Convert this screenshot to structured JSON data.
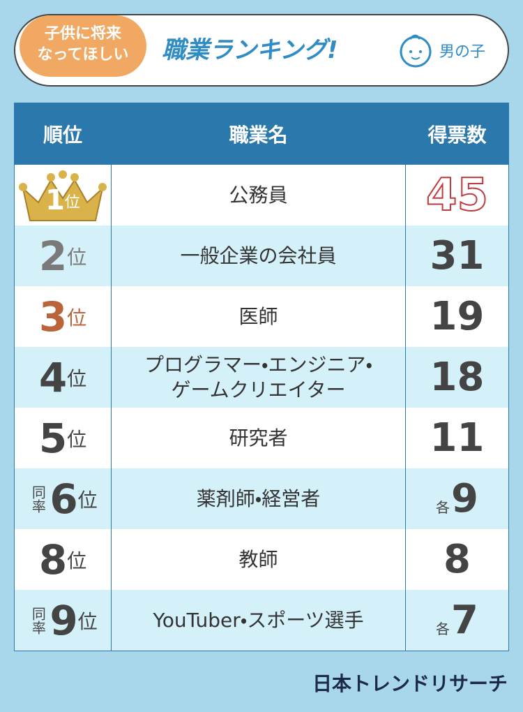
{
  "header": {
    "badge": [
      "子供に将来",
      "なってほしい"
    ],
    "title": "職業ランキング!",
    "gender": "男の子"
  },
  "table": {
    "columns": [
      "順位",
      "職業名",
      "得票数"
    ],
    "rows": [
      {
        "rank": 1,
        "rank_suffix": "位",
        "occupation": [
          "公務員"
        ],
        "votes": 45
      },
      {
        "rank": 2,
        "rank_suffix": "位",
        "occupation": [
          "一般企業の会社員"
        ],
        "votes": 31
      },
      {
        "rank": 3,
        "rank_suffix": "位",
        "occupation": [
          "医師"
        ],
        "votes": 19
      },
      {
        "rank": 4,
        "rank_suffix": "位",
        "occupation": [
          "プログラマー・エンジニア・",
          "ゲームクリエイター"
        ],
        "votes": 18
      },
      {
        "rank": 5,
        "rank_suffix": "位",
        "occupation": [
          "研究者"
        ],
        "votes": 11
      },
      {
        "tie": "同率",
        "rank": 6,
        "rank_suffix": "位",
        "occupation": [
          "薬剤師・経営者"
        ],
        "votes_prefix": "各",
        "votes": 9
      },
      {
        "rank": 8,
        "rank_suffix": "位",
        "occupation": [
          "教師"
        ],
        "votes": 8
      },
      {
        "tie": "同率",
        "rank": 9,
        "rank_suffix": "位",
        "occupation": [
          "YouTuber・スポーツ選手"
        ],
        "votes_prefix": "各",
        "votes": 7
      }
    ]
  },
  "footer": {
    "brand": "日本トレンドリサーチ"
  }
}
